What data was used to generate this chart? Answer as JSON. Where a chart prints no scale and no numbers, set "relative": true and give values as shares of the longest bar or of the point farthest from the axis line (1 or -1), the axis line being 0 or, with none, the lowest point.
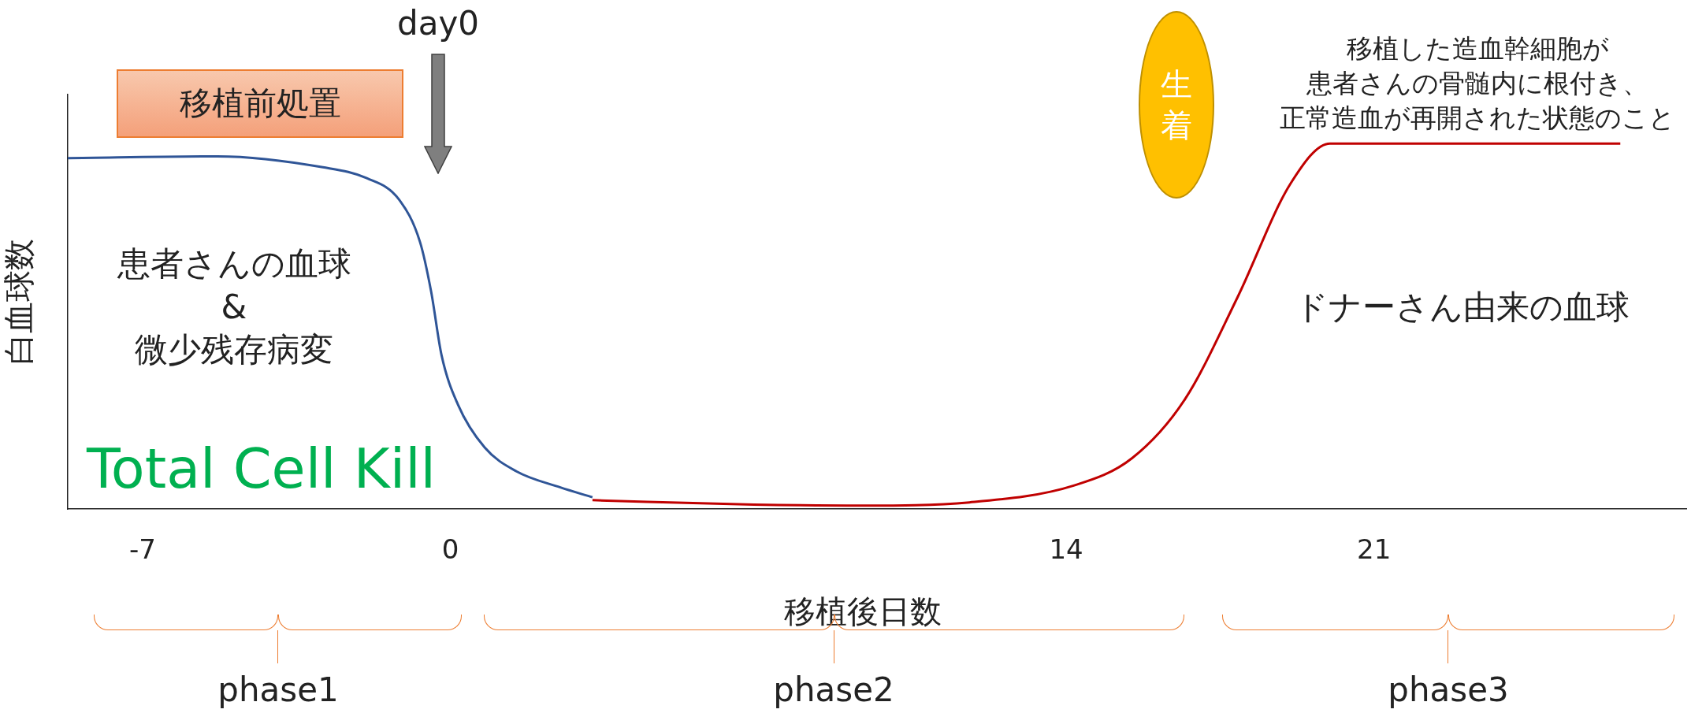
{
  "chart_data": {
    "type": "line",
    "relative": true,
    "xlabel": "移植後日数",
    "ylabel": "白血球数",
    "xlim": [
      -8.7,
      28.1
    ],
    "xticks": [
      -7,
      0,
      14,
      21
    ],
    "grid": false,
    "legend": false,
    "marker": "none",
    "line_style": "solid",
    "series": [
      {
        "color": "#2f5597",
        "x": [
          -8.7,
          -5.3,
          -2.9,
          -1.9,
          -1.17,
          -0.69,
          -0.44,
          -0.2,
          0.17,
          0.78,
          1.5,
          2.5,
          3.23
        ],
        "values": [
          0.96,
          0.965,
          0.935,
          0.905,
          0.847,
          0.73,
          0.596,
          0.42,
          0.286,
          0.168,
          0.103,
          0.059,
          0.032
        ]
      },
      {
        "color": "#c00000",
        "x": [
          3.23,
          6.9,
          9.35,
          11.8,
          14.2,
          15.5,
          16.7,
          17.9,
          19.1,
          20.0,
          21.6,
          26.6
        ],
        "values": [
          0.024,
          0.012,
          0.009,
          0.018,
          0.065,
          0.139,
          0.3,
          0.58,
          0.89,
          1.0,
          1.0,
          1.0
        ]
      }
    ],
    "annotations": [
      "移植前処置",
      "day0",
      "生着",
      "移植した造血幹細胞が",
      "患者さんの骨髄内に根付き、",
      "正常造血が再開された状態のこと",
      "患者さんの血球\n&\n微少残存病変",
      "Total Cell Kill",
      "ドナーさん由来の血球",
      "phase1",
      "phase2",
      "phase3"
    ]
  }
}
